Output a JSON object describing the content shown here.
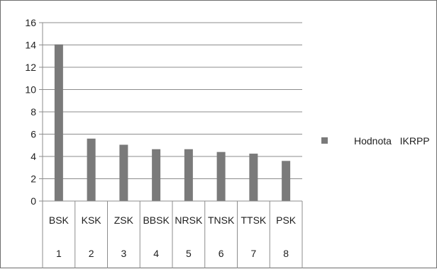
{
  "chart_data": {
    "type": "bar",
    "categories": [
      "BSK",
      "KSK",
      "ZSK",
      "BBSK",
      "NRSK",
      "TNSK",
      "TTSK",
      "PSK"
    ],
    "category_numbers": [
      "1",
      "2",
      "3",
      "4",
      "5",
      "6",
      "7",
      "8"
    ],
    "series": [
      {
        "name": "Hodnota   IKRPP",
        "values": [
          14.05,
          5.6,
          5.05,
          4.65,
          4.65,
          4.4,
          4.25,
          3.6
        ],
        "color": "#7a7a7a"
      }
    ],
    "yticks": [
      "0",
      "2",
      "4",
      "6",
      "8",
      "10",
      "12",
      "14",
      "16"
    ],
    "ylim": [
      0,
      16
    ],
    "grid": true,
    "legend_position": "right",
    "title": "",
    "xlabel": "",
    "ylabel": ""
  }
}
